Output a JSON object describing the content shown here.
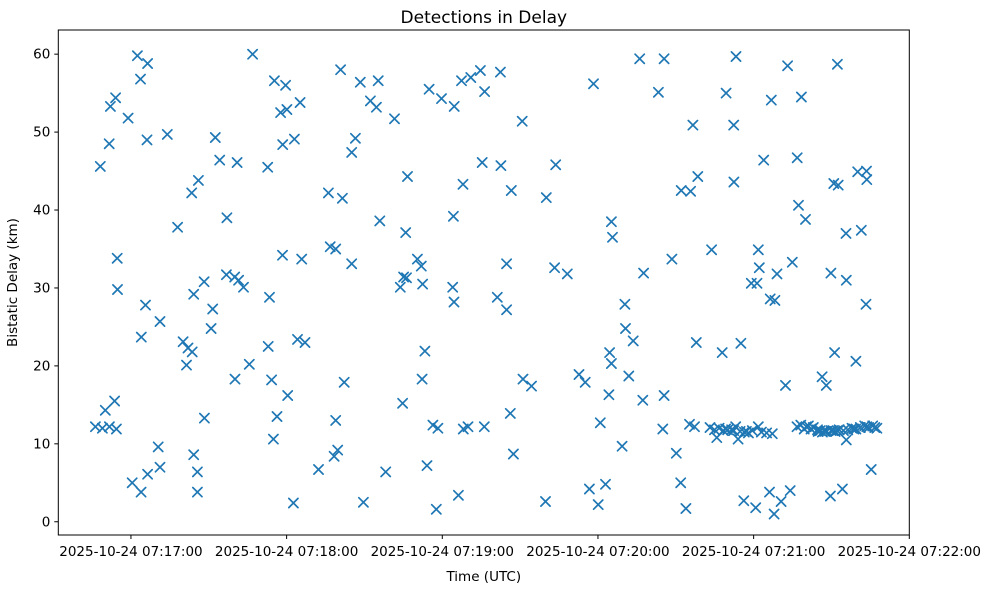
{
  "chart_data": {
    "type": "scatter",
    "title": "Detections in Delay",
    "xlabel": "Time (UTC)",
    "ylabel": "Bistatic Delay (km)",
    "marker": "x",
    "marker_color": "#1f77b4",
    "grid": false,
    "legend": null,
    "x_unit": "seconds after 2025-10-24 07:16:00 UTC",
    "xlim_seconds": [
      32,
      360
    ],
    "ylim": [
      -1.7,
      63.1
    ],
    "x_ticks": [
      {
        "seconds": 60,
        "label": "2025-10-24 07:17:00"
      },
      {
        "seconds": 120,
        "label": "2025-10-24 07:18:00"
      },
      {
        "seconds": 180,
        "label": "2025-10-24 07:19:00"
      },
      {
        "seconds": 240,
        "label": "2025-10-24 07:20:00"
      },
      {
        "seconds": 300,
        "label": "2025-10-24 07:21:00"
      },
      {
        "seconds": 360,
        "label": "2025-10-24 07:22:00"
      }
    ],
    "y_ticks": [
      0,
      10,
      20,
      30,
      40,
      50,
      60
    ],
    "points": [
      [
        62.5,
        59.8
      ],
      [
        66.4,
        58.8
      ],
      [
        63.7,
        56.8
      ],
      [
        54.1,
        54.4
      ],
      [
        52.1,
        53.3
      ],
      [
        58.9,
        51.8
      ],
      [
        51.6,
        48.5
      ],
      [
        66.2,
        49.0
      ],
      [
        74.0,
        49.7
      ],
      [
        92.5,
        49.3
      ],
      [
        94.2,
        46.4
      ],
      [
        100.9,
        46.1
      ],
      [
        112.7,
        45.5
      ],
      [
        106.9,
        60.0
      ],
      [
        48.2,
        45.6
      ],
      [
        86.0,
        43.8
      ],
      [
        83.4,
        42.2
      ],
      [
        115.3,
        56.6
      ],
      [
        119.6,
        56.0
      ],
      [
        140.8,
        58.0
      ],
      [
        148.4,
        56.4
      ],
      [
        155.3,
        56.6
      ],
      [
        125.2,
        53.8
      ],
      [
        120.1,
        52.9
      ],
      [
        117.7,
        52.5
      ],
      [
        152.3,
        54.0
      ],
      [
        154.6,
        53.2
      ],
      [
        161.6,
        51.7
      ],
      [
        123.0,
        49.1
      ],
      [
        118.5,
        48.4
      ],
      [
        146.5,
        49.2
      ],
      [
        145.1,
        47.4
      ],
      [
        174.9,
        55.5
      ],
      [
        179.7,
        54.3
      ],
      [
        184.6,
        53.3
      ],
      [
        187.4,
        56.6
      ],
      [
        191.0,
        57.0
      ],
      [
        194.7,
        57.9
      ],
      [
        196.3,
        55.2
      ],
      [
        195.4,
        46.1
      ],
      [
        166.6,
        44.3
      ],
      [
        188.0,
        43.3
      ],
      [
        136.1,
        42.2
      ],
      [
        141.5,
        41.5
      ],
      [
        202.4,
        57.7
      ],
      [
        238.3,
        56.2
      ],
      [
        256.1,
        59.4
      ],
      [
        265.5,
        59.4
      ],
      [
        263.3,
        55.1
      ],
      [
        210.8,
        51.4
      ],
      [
        276.6,
        50.9
      ],
      [
        202.6,
        45.7
      ],
      [
        223.7,
        45.8
      ],
      [
        206.6,
        42.5
      ],
      [
        272.1,
        42.5
      ],
      [
        275.7,
        42.4
      ],
      [
        278.5,
        44.3
      ],
      [
        293.2,
        59.7
      ],
      [
        313.1,
        58.5
      ],
      [
        332.3,
        58.7
      ],
      [
        289.4,
        55.0
      ],
      [
        306.8,
        54.1
      ],
      [
        318.4,
        54.5
      ],
      [
        292.3,
        50.9
      ],
      [
        303.9,
        46.4
      ],
      [
        316.8,
        46.7
      ],
      [
        292.4,
        43.6
      ],
      [
        340.1,
        44.9
      ],
      [
        343.5,
        45.0
      ],
      [
        343.6,
        43.9
      ],
      [
        330.9,
        43.4
      ],
      [
        332.6,
        43.2
      ],
      [
        97.0,
        39.0
      ],
      [
        78.0,
        37.8
      ],
      [
        54.7,
        33.8
      ],
      [
        96.8,
        31.7
      ],
      [
        88.2,
        30.8
      ],
      [
        100.0,
        31.4
      ],
      [
        101.5,
        31.0
      ],
      [
        103.4,
        30.1
      ],
      [
        84.2,
        29.2
      ],
      [
        113.4,
        28.8
      ],
      [
        54.8,
        29.8
      ],
      [
        65.6,
        27.8
      ],
      [
        91.5,
        27.3
      ],
      [
        71.2,
        25.7
      ],
      [
        90.9,
        24.8
      ],
      [
        64.0,
        23.7
      ],
      [
        80.1,
        23.1
      ],
      [
        82.0,
        22.3
      ],
      [
        83.6,
        21.8
      ],
      [
        81.4,
        20.1
      ],
      [
        112.9,
        22.5
      ],
      [
        105.6,
        20.2
      ],
      [
        155.9,
        38.6
      ],
      [
        184.3,
        39.2
      ],
      [
        165.9,
        37.1
      ],
      [
        136.8,
        35.3
      ],
      [
        138.9,
        35.0
      ],
      [
        118.4,
        34.2
      ],
      [
        125.8,
        33.7
      ],
      [
        145.1,
        33.1
      ],
      [
        170.4,
        33.7
      ],
      [
        171.9,
        32.8
      ],
      [
        165.1,
        31.4
      ],
      [
        166.2,
        31.3
      ],
      [
        163.8,
        30.1
      ],
      [
        172.4,
        30.5
      ],
      [
        184.0,
        30.1
      ],
      [
        184.5,
        28.2
      ],
      [
        124.2,
        23.4
      ],
      [
        127.1,
        23.0
      ],
      [
        173.3,
        21.9
      ],
      [
        220.1,
        41.6
      ],
      [
        245.2,
        38.5
      ],
      [
        245.6,
        36.5
      ],
      [
        204.8,
        33.1
      ],
      [
        223.3,
        32.6
      ],
      [
        228.2,
        31.8
      ],
      [
        268.5,
        33.7
      ],
      [
        257.6,
        31.9
      ],
      [
        201.2,
        28.8
      ],
      [
        204.8,
        27.2
      ],
      [
        250.4,
        27.9
      ],
      [
        250.6,
        24.8
      ],
      [
        253.6,
        23.2
      ],
      [
        244.5,
        21.7
      ],
      [
        245.2,
        20.3
      ],
      [
        277.9,
        23.0
      ],
      [
        317.3,
        40.6
      ],
      [
        320.0,
        38.8
      ],
      [
        335.6,
        37.0
      ],
      [
        341.5,
        37.4
      ],
      [
        283.8,
        34.9
      ],
      [
        301.8,
        34.9
      ],
      [
        314.9,
        33.3
      ],
      [
        302.2,
        32.6
      ],
      [
        309.0,
        31.8
      ],
      [
        299.1,
        30.6
      ],
      [
        301.3,
        30.6
      ],
      [
        329.8,
        31.9
      ],
      [
        335.7,
        31.0
      ],
      [
        306.4,
        28.6
      ],
      [
        308.2,
        28.4
      ],
      [
        343.3,
        27.9
      ],
      [
        287.9,
        21.7
      ],
      [
        295.1,
        22.9
      ],
      [
        331.2,
        21.7
      ],
      [
        339.4,
        20.6
      ],
      [
        100.1,
        18.3
      ],
      [
        114.2,
        18.2
      ],
      [
        53.7,
        15.5
      ],
      [
        50.1,
        14.3
      ],
      [
        88.3,
        13.3
      ],
      [
        46.3,
        12.2
      ],
      [
        49.0,
        12.0
      ],
      [
        51.7,
        12.2
      ],
      [
        54.4,
        11.9
      ],
      [
        70.5,
        9.6
      ],
      [
        84.2,
        8.6
      ],
      [
        71.2,
        7.0
      ],
      [
        66.4,
        6.1
      ],
      [
        85.6,
        6.4
      ],
      [
        60.5,
        5.0
      ],
      [
        63.9,
        3.8
      ],
      [
        85.6,
        3.8
      ],
      [
        114.9,
        10.6
      ],
      [
        142.2,
        17.9
      ],
      [
        172.2,
        18.3
      ],
      [
        120.4,
        16.2
      ],
      [
        164.7,
        15.2
      ],
      [
        116.3,
        13.5
      ],
      [
        138.9,
        13.0
      ],
      [
        176.4,
        12.4
      ],
      [
        178.3,
        12.0
      ],
      [
        188.1,
        11.9
      ],
      [
        189.9,
        12.2
      ],
      [
        139.7,
        9.2
      ],
      [
        138.3,
        8.4
      ],
      [
        132.3,
        6.7
      ],
      [
        158.2,
        6.4
      ],
      [
        174.1,
        7.2
      ],
      [
        186.2,
        3.4
      ],
      [
        122.6,
        2.4
      ],
      [
        149.6,
        2.5
      ],
      [
        177.7,
        1.6
      ],
      [
        232.7,
        18.9
      ],
      [
        235.1,
        17.9
      ],
      [
        211.1,
        18.3
      ],
      [
        214.4,
        17.4
      ],
      [
        251.9,
        18.7
      ],
      [
        244.2,
        16.3
      ],
      [
        257.3,
        15.6
      ],
      [
        265.5,
        16.2
      ],
      [
        206.2,
        13.9
      ],
      [
        196.2,
        12.2
      ],
      [
        240.9,
        12.7
      ],
      [
        265.0,
        11.9
      ],
      [
        275.3,
        12.5
      ],
      [
        277.2,
        12.2
      ],
      [
        249.3,
        9.7
      ],
      [
        207.4,
        8.7
      ],
      [
        270.2,
        8.8
      ],
      [
        271.9,
        5.0
      ],
      [
        242.9,
        4.8
      ],
      [
        236.7,
        4.2
      ],
      [
        219.8,
        2.6
      ],
      [
        240.1,
        2.2
      ],
      [
        273.9,
        1.7
      ],
      [
        326.4,
        18.6
      ],
      [
        328.0,
        17.5
      ],
      [
        312.3,
        17.5
      ],
      [
        345.3,
        6.7
      ],
      [
        334.2,
        4.2
      ],
      [
        329.6,
        3.3
      ],
      [
        314.1,
        4.0
      ],
      [
        306.1,
        3.8
      ],
      [
        310.6,
        2.6
      ],
      [
        296.2,
        2.7
      ],
      [
        300.8,
        1.8
      ],
      [
        307.9,
        1.0
      ],
      [
        283.2,
        12.1
      ],
      [
        284.9,
        11.8
      ],
      [
        285.8,
        10.8
      ],
      [
        286.7,
        12.0
      ],
      [
        288.3,
        11.7
      ],
      [
        289.2,
        11.9
      ],
      [
        290.0,
        11.8
      ],
      [
        291.5,
        11.8
      ],
      [
        292.3,
        11.7
      ],
      [
        293.1,
        12.2
      ],
      [
        294.0,
        10.6
      ],
      [
        294.8,
        11.6
      ],
      [
        296.4,
        11.5
      ],
      [
        297.2,
        11.6
      ],
      [
        298.0,
        11.4
      ],
      [
        299.5,
        11.7
      ],
      [
        301.8,
        12.2
      ],
      [
        303.0,
        11.5
      ],
      [
        305.0,
        11.4
      ],
      [
        307.2,
        11.3
      ],
      [
        316.7,
        12.2
      ],
      [
        318.2,
        12.4
      ],
      [
        319.5,
        11.9
      ],
      [
        320.3,
        12.2
      ],
      [
        321.1,
        12.3
      ],
      [
        322.1,
        11.9
      ],
      [
        323.0,
        12.1
      ],
      [
        324.6,
        11.8
      ],
      [
        324.9,
        11.6
      ],
      [
        325.7,
        11.7
      ],
      [
        326.5,
        11.5
      ],
      [
        327.4,
        11.6
      ],
      [
        328.2,
        11.6
      ],
      [
        329.9,
        11.7
      ],
      [
        330.6,
        11.7
      ],
      [
        331.4,
        11.6
      ],
      [
        332.2,
        11.7
      ],
      [
        333.0,
        11.8
      ],
      [
        334.6,
        11.7
      ],
      [
        335.7,
        10.5
      ],
      [
        336.3,
        11.8
      ],
      [
        337.9,
        12.0
      ],
      [
        338.6,
        11.9
      ],
      [
        339.4,
        11.9
      ],
      [
        341.1,
        12.1
      ],
      [
        342.8,
        12.3
      ],
      [
        343.6,
        12.2
      ],
      [
        344.3,
        12.1
      ],
      [
        345.9,
        12.3
      ],
      [
        346.7,
        12.1
      ],
      [
        347.5,
        12.0
      ]
    ]
  }
}
